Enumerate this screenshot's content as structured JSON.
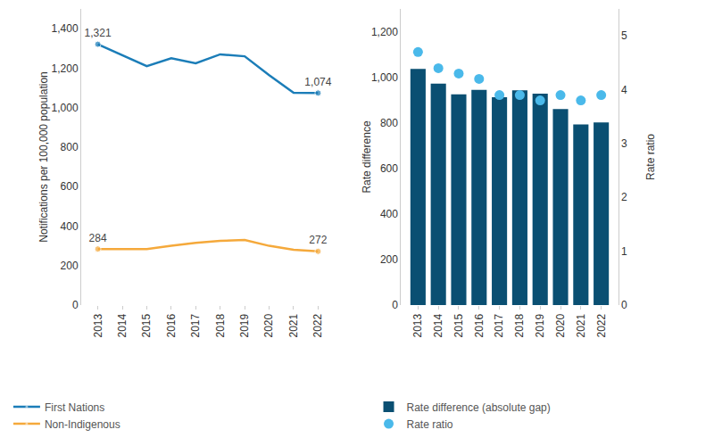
{
  "chart_data": [
    {
      "type": "line",
      "categories": [
        "2013",
        "2014",
        "2015",
        "2016",
        "2017",
        "2018",
        "2019",
        "2020",
        "2021",
        "2022"
      ],
      "ylabel": "Notifications per 100,000 population",
      "ylim": [
        0,
        1500
      ],
      "yticks": [
        0,
        200,
        400,
        600,
        800,
        {
          "value": 1000,
          "label": "1,000"
        },
        {
          "value": 1200,
          "label": "1,200"
        },
        {
          "value": 1400,
          "label": "1,400"
        }
      ],
      "grid": false,
      "data_labels": true,
      "series": [
        {
          "name": "First Nations",
          "color": "#1b7db8",
          "values": [
            1321,
            1265,
            1210,
            1250,
            1225,
            1270,
            1260,
            1165,
            1075,
            1074
          ],
          "value_labels": [
            "1,321",
            null,
            null,
            null,
            null,
            null,
            null,
            null,
            null,
            "1,074"
          ]
        },
        {
          "name": "Non-Indigenous",
          "color": "#f5a93b",
          "values": [
            284,
            284,
            283,
            300,
            315,
            325,
            330,
            300,
            280,
            272
          ],
          "value_labels": [
            "284",
            null,
            null,
            null,
            null,
            null,
            null,
            null,
            null,
            "272"
          ]
        }
      ]
    },
    {
      "type": "bar",
      "categories": [
        "2013",
        "2014",
        "2015",
        "2016",
        "2017",
        "2018",
        "2019",
        "2020",
        "2021",
        "2022"
      ],
      "ylabel": "Rate difference",
      "y2label": "Rate ratio",
      "ylim": [
        0,
        1300
      ],
      "yticks": [
        0,
        200,
        400,
        600,
        800,
        {
          "value": 1000,
          "label": "1,000"
        },
        {
          "value": 1200,
          "label": "1,200"
        }
      ],
      "y2lim": [
        0,
        5.5
      ],
      "y2ticks": [
        0,
        1,
        2,
        3,
        4,
        5
      ],
      "grid": false,
      "series": [
        {
          "name": "Rate difference (absolute gap)",
          "type": "bar",
          "color": "#0a4f72",
          "values": [
            1037,
            972,
            925,
            945,
            912,
            943,
            928,
            860,
            793,
            802
          ]
        },
        {
          "name": "Rate ratio",
          "type": "scatter",
          "axis": "y2",
          "color": "#4ab9ea",
          "marker": "circle",
          "values": [
            4.7,
            4.4,
            4.3,
            4.2,
            3.9,
            3.9,
            3.8,
            3.9,
            3.8,
            3.9
          ]
        }
      ]
    }
  ]
}
